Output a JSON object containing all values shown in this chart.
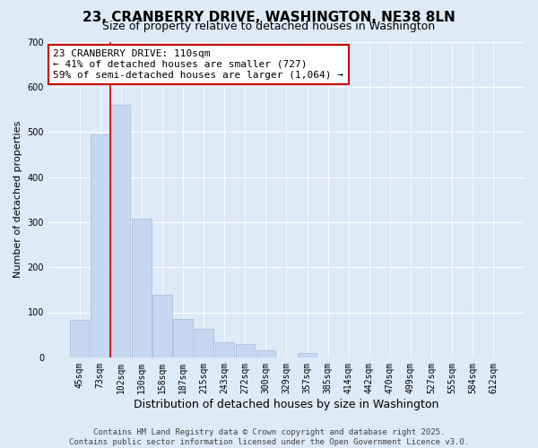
{
  "title": "23, CRANBERRY DRIVE, WASHINGTON, NE38 8LN",
  "subtitle": "Size of property relative to detached houses in Washington",
  "xlabel": "Distribution of detached houses by size in Washington",
  "ylabel": "Number of detached properties",
  "bar_labels": [
    "45sqm",
    "73sqm",
    "102sqm",
    "130sqm",
    "158sqm",
    "187sqm",
    "215sqm",
    "243sqm",
    "272sqm",
    "300sqm",
    "329sqm",
    "357sqm",
    "385sqm",
    "414sqm",
    "442sqm",
    "470sqm",
    "499sqm",
    "527sqm",
    "555sqm",
    "584sqm",
    "612sqm"
  ],
  "bar_values": [
    83,
    495,
    560,
    307,
    138,
    85,
    63,
    33,
    30,
    15,
    0,
    10,
    0,
    0,
    0,
    0,
    0,
    0,
    0,
    0,
    0
  ],
  "bar_color": "#c5d8f0",
  "bar_edge_color": "#a0bcd8",
  "red_line_x": 1.5,
  "red_line_color": "#cc0000",
  "annotation_title": "23 CRANBERRY DRIVE: 110sqm",
  "annotation_line1": "← 41% of detached houses are smaller (727)",
  "annotation_line2": "59% of semi-detached houses are larger (1,064) →",
  "annotation_box_color": "#ffffff",
  "annotation_box_edge_color": "#cc0000",
  "ylim": [
    0,
    700
  ],
  "yticks": [
    0,
    100,
    200,
    300,
    400,
    500,
    600,
    700
  ],
  "background_color": "#ddeaf7",
  "plot_background_color": "#ddeaf7",
  "footer_line1": "Contains HM Land Registry data © Crown copyright and database right 2025.",
  "footer_line2": "Contains public sector information licensed under the Open Government Licence v3.0.",
  "title_fontsize": 11,
  "subtitle_fontsize": 9,
  "xlabel_fontsize": 9,
  "ylabel_fontsize": 8,
  "tick_fontsize": 7,
  "annotation_fontsize": 8,
  "footer_fontsize": 6.5
}
